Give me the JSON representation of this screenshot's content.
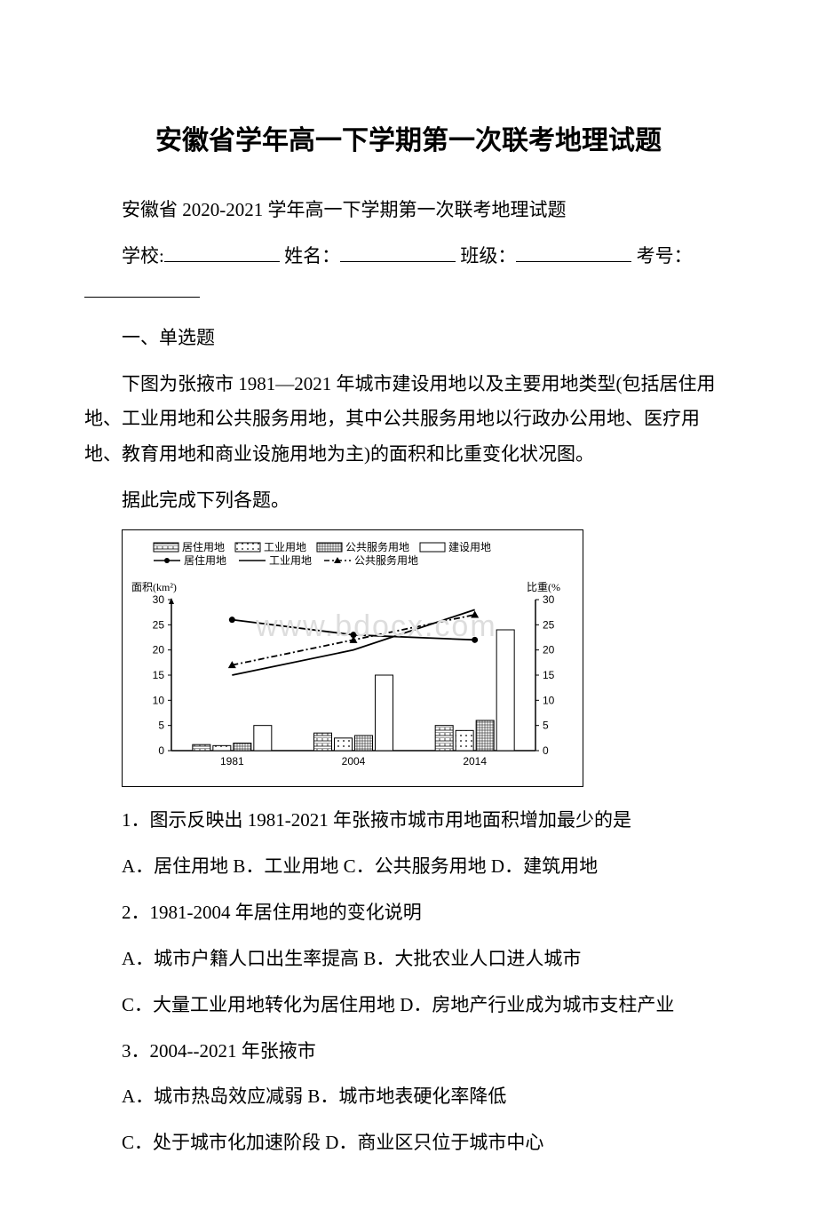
{
  "title": "安徽省学年高一下学期第一次联考地理试题",
  "subtitle": "安徽省 2020-2021 学年高一下学期第一次联考地理试题",
  "form": {
    "school_label": "学校:",
    "name_label": "姓名：",
    "class_label": "班级：",
    "examno_label": "考号："
  },
  "section1": "一、单选题",
  "passage1_p1": "下图为张掖市 1981—2021 年城市建设用地以及主要用地类型(包括居住用地、工业用地和公共服务用地，其中公共服务用地以行政办公用地、医疗用地、教育用地和商业设施用地为主)的面积和比重变化状况图。",
  "passage1_p2": "据此完成下列各题。",
  "chart": {
    "watermark": "www.bdocx.com",
    "legend_bars": [
      "居住用地",
      "工业用地",
      "公共服务用地",
      "建设用地"
    ],
    "legend_lines": [
      "居住用地",
      "工业用地",
      "公共服务用地"
    ],
    "y_left_label": "面积(km²)",
    "y_right_label": "比重(%",
    "y_left_max": 30,
    "y_left_step": 5,
    "y_right_max": 30,
    "y_right_step": 5,
    "years": [
      "1981",
      "2004",
      "2014"
    ],
    "bars": {
      "1981": {
        "residential": 1.2,
        "industrial": 1.0,
        "public": 1.5,
        "construction": 5.0
      },
      "2004": {
        "residential": 3.5,
        "industrial": 2.5,
        "public": 3.0,
        "construction": 15.0
      },
      "2014": {
        "residential": 5.0,
        "industrial": 4.0,
        "public": 6.0,
        "construction": 24.0
      }
    },
    "lines": {
      "residential": [
        26,
        23,
        22
      ],
      "industrial": [
        15,
        20,
        28
      ],
      "public": [
        17,
        22,
        27
      ]
    },
    "colors": {
      "axis": "#000000",
      "bg": "#ffffff",
      "text": "#000000"
    },
    "font_size": 12
  },
  "q1": {
    "stem": "1．图示反映出 1981-2021 年张掖市城市用地面积增加最少的是",
    "opts": "A．居住用地 B．工业用地 C．公共服务用地 D．建筑用地"
  },
  "q2": {
    "stem": "2．1981-2004 年居住用地的变化说明",
    "optA": "A．城市户籍人口出生率提高 B．大批农业人口进人城市",
    "optC": "C．大量工业用地转化为居住用地 D．房地产行业成为城市支柱产业"
  },
  "q3": {
    "stem": "3．2004--2021 年张掖市",
    "optA": "A．城市热岛效应减弱 B．城市地表硬化率降低",
    "optC": "C．处于城市化加速阶段 D．商业区只位于城市中心"
  }
}
